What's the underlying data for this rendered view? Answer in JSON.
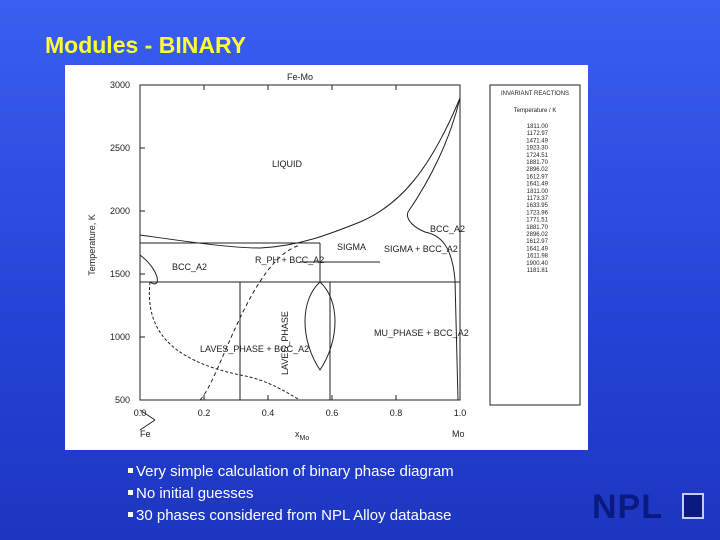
{
  "slide": {
    "title": "Modules - BINARY",
    "figure": {
      "title": "Fe-Mo",
      "x_label": "x",
      "x_label_sub": "Mo",
      "y_label": "Temperature, K",
      "x_start": "Fe",
      "x_end": "Mo",
      "xlim": [
        0,
        1
      ],
      "ylim": [
        500,
        3000
      ],
      "xticks": [
        {
          "value": 0,
          "label": "0.0"
        },
        {
          "value": 0.2,
          "label": "0.2"
        },
        {
          "value": 0.4,
          "label": "0.4"
        },
        {
          "value": 0.6,
          "label": "0.6"
        },
        {
          "value": 0.8,
          "label": "0.8"
        },
        {
          "value": 1,
          "label": "1.0"
        }
      ],
      "yticks": [
        500,
        1000,
        1500,
        2000,
        2500,
        3000
      ],
      "phase_labels": [
        "LIQUID",
        "BCC_A2",
        "BCC_A2",
        "SIGMA",
        "SIGMA + BCC_A2",
        "R_PH + BCC_A2",
        "MU_PHASE + BCC_A2",
        "LAVES_PHASE + BCC_A2",
        "LAVES_PHASE"
      ],
      "legend_title": "INVARIANT REACTIONS",
      "legend_subtitle": "Temperature / K",
      "legend_items": [
        "1811.00",
        "1172.97",
        "1471.49",
        "1923.30",
        "1724.51",
        "1881.70",
        "2896.02",
        "1612.97",
        "1641.49",
        "1811.00",
        "1173.37",
        "1633.95",
        "1723.96",
        "1771.51",
        "1881.70",
        "2896.02",
        "1612.97",
        "1641.49",
        "1611.98",
        "1900.40",
        "1181.81"
      ]
    },
    "bullets": [
      "Very simple calculation of binary phase diagram",
      "No initial guesses",
      "30 phases considered from NPL Alloy database"
    ],
    "logo": "NPL"
  }
}
